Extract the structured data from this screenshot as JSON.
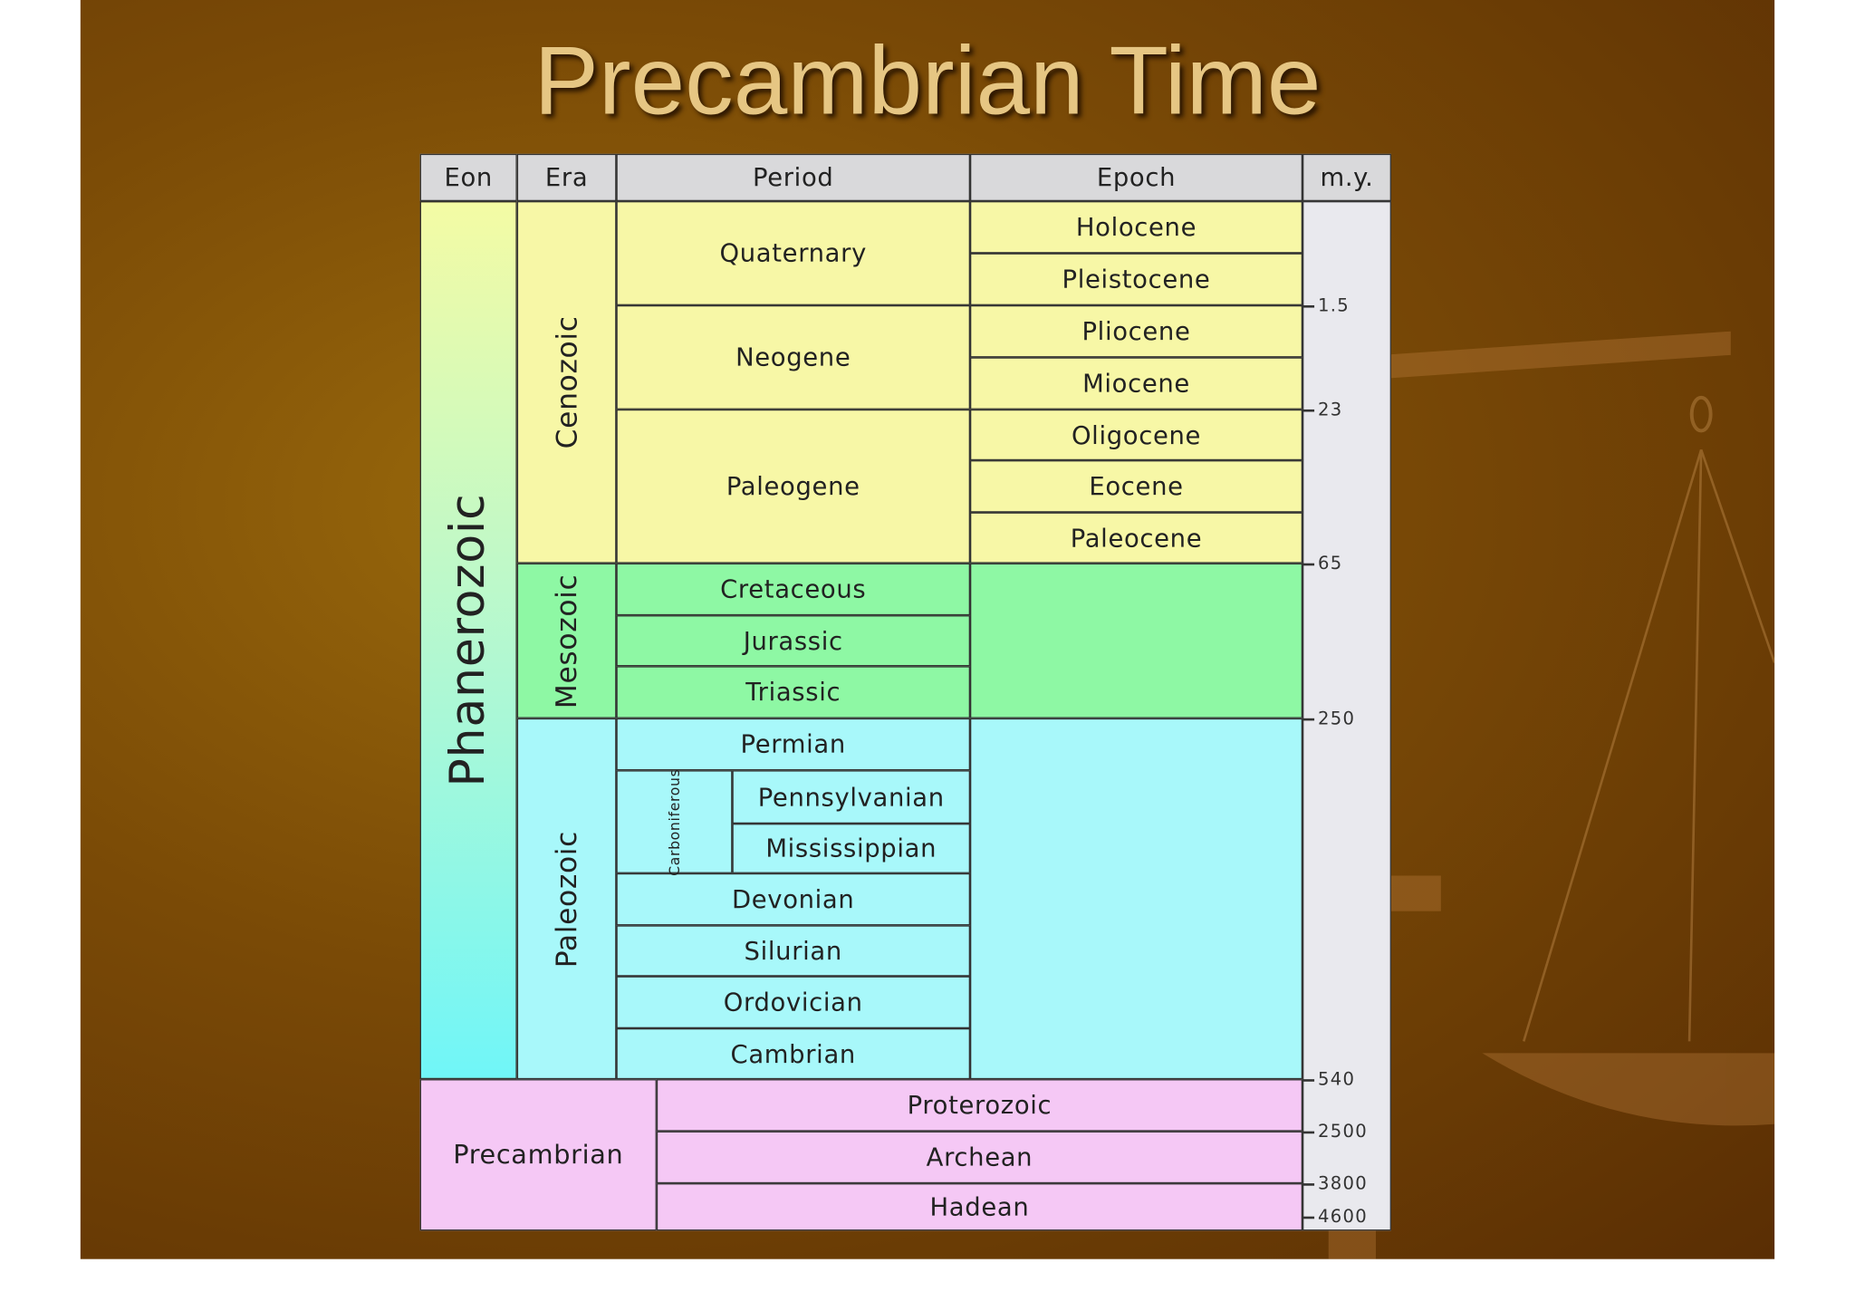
{
  "title": "Precambrian Time",
  "table": {
    "headers": [
      "Eon",
      "Era",
      "Period",
      "Epoch",
      "m.y."
    ],
    "eons": [
      "Phanerozoic",
      "Precambrian"
    ],
    "eras": [
      "Cenozoic",
      "Mesozoic",
      "Paleozoic"
    ],
    "periods": [
      "Quaternary",
      "Neogene",
      "Paleogene",
      "Cretaceous",
      "Jurassic",
      "Triassic",
      "Permian",
      "Carboniferous",
      "Devonian",
      "Silurian",
      "Ordovician",
      "Cambrian"
    ],
    "subperiods": [
      "Pennsylvanian",
      "Mississippian"
    ],
    "epochs": [
      "Holocene",
      "Pleistocene",
      "Pliocene",
      "Miocene",
      "Oligocene",
      "Eocene",
      "Paleocene"
    ],
    "precambrian_eons": [
      "Proterozoic",
      "Archean",
      "Hadean"
    ],
    "ages": [
      "1.5",
      "23",
      "65",
      "250",
      "540",
      "2500",
      "3800",
      "4600"
    ]
  }
}
